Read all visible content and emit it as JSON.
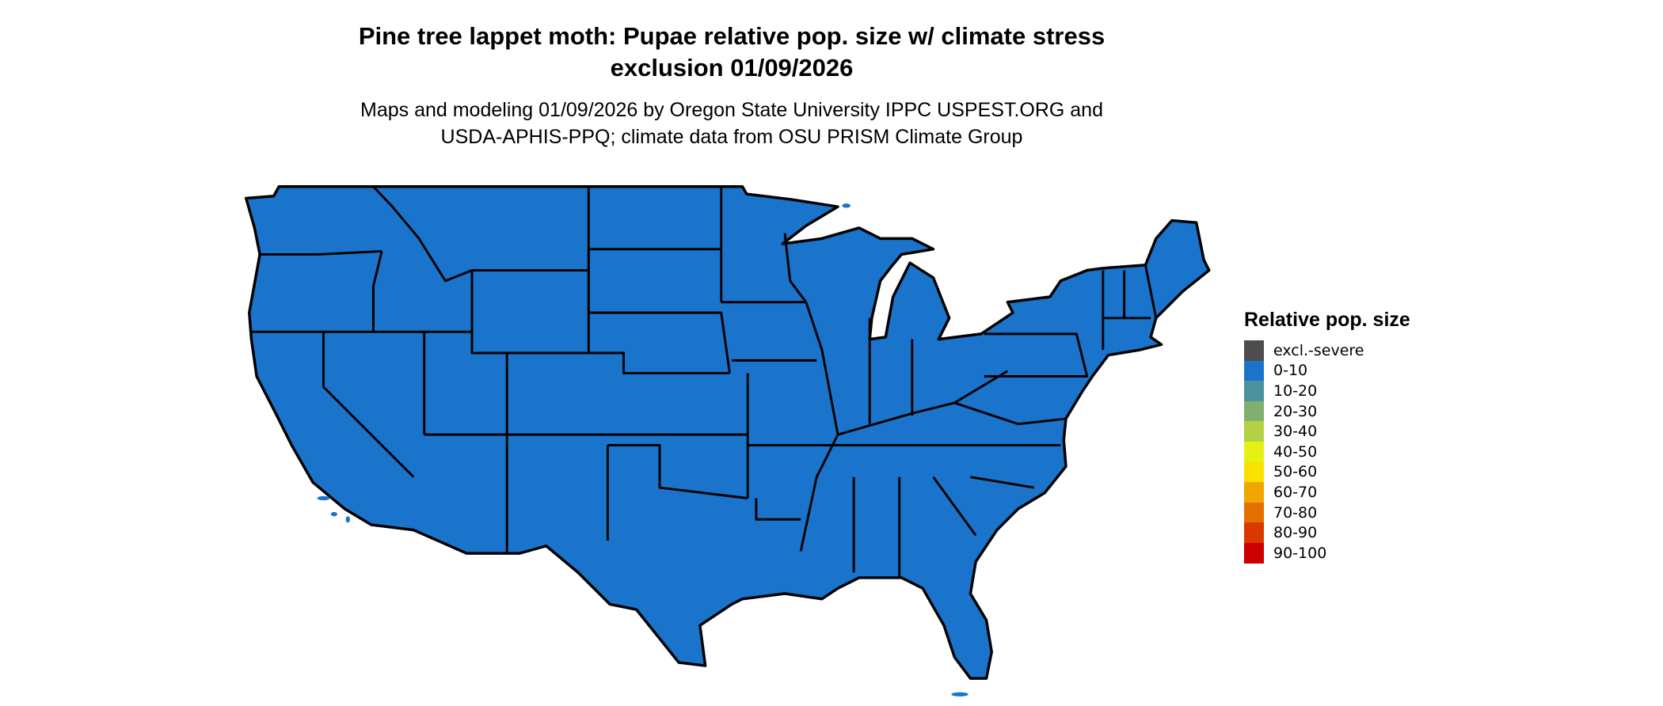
{
  "title": {
    "line1": "Pine tree lappet moth: Pupae relative pop. size w/ climate stress",
    "line2": "exclusion 01/09/2026"
  },
  "subtitle": {
    "line1": "Maps and modeling 01/09/2026 by Oregon State University IPPC USPEST.ORG and",
    "line2": "USDA-APHIS-PPQ; climate data from OSU PRISM Climate Group"
  },
  "map": {
    "region": "Contiguous United States",
    "fill_category": "0-10",
    "fill_color": "#1a74cc",
    "border_color": "#000000"
  },
  "legend": {
    "title": "Relative pop. size",
    "items": [
      {
        "label": "excl.-severe",
        "color": "#4d4d4d"
      },
      {
        "label": "0-10",
        "color": "#1a74cc"
      },
      {
        "label": "10-20",
        "color": "#4a929e"
      },
      {
        "label": "20-30",
        "color": "#7fb070"
      },
      {
        "label": "30-40",
        "color": "#b3d144"
      },
      {
        "label": "40-50",
        "color": "#e6f014"
      },
      {
        "label": "50-60",
        "color": "#fae100"
      },
      {
        "label": "60-70",
        "color": "#efa700"
      },
      {
        "label": "70-80",
        "color": "#e37000"
      },
      {
        "label": "80-90",
        "color": "#d93800"
      },
      {
        "label": "90-100",
        "color": "#cc0000"
      }
    ]
  }
}
